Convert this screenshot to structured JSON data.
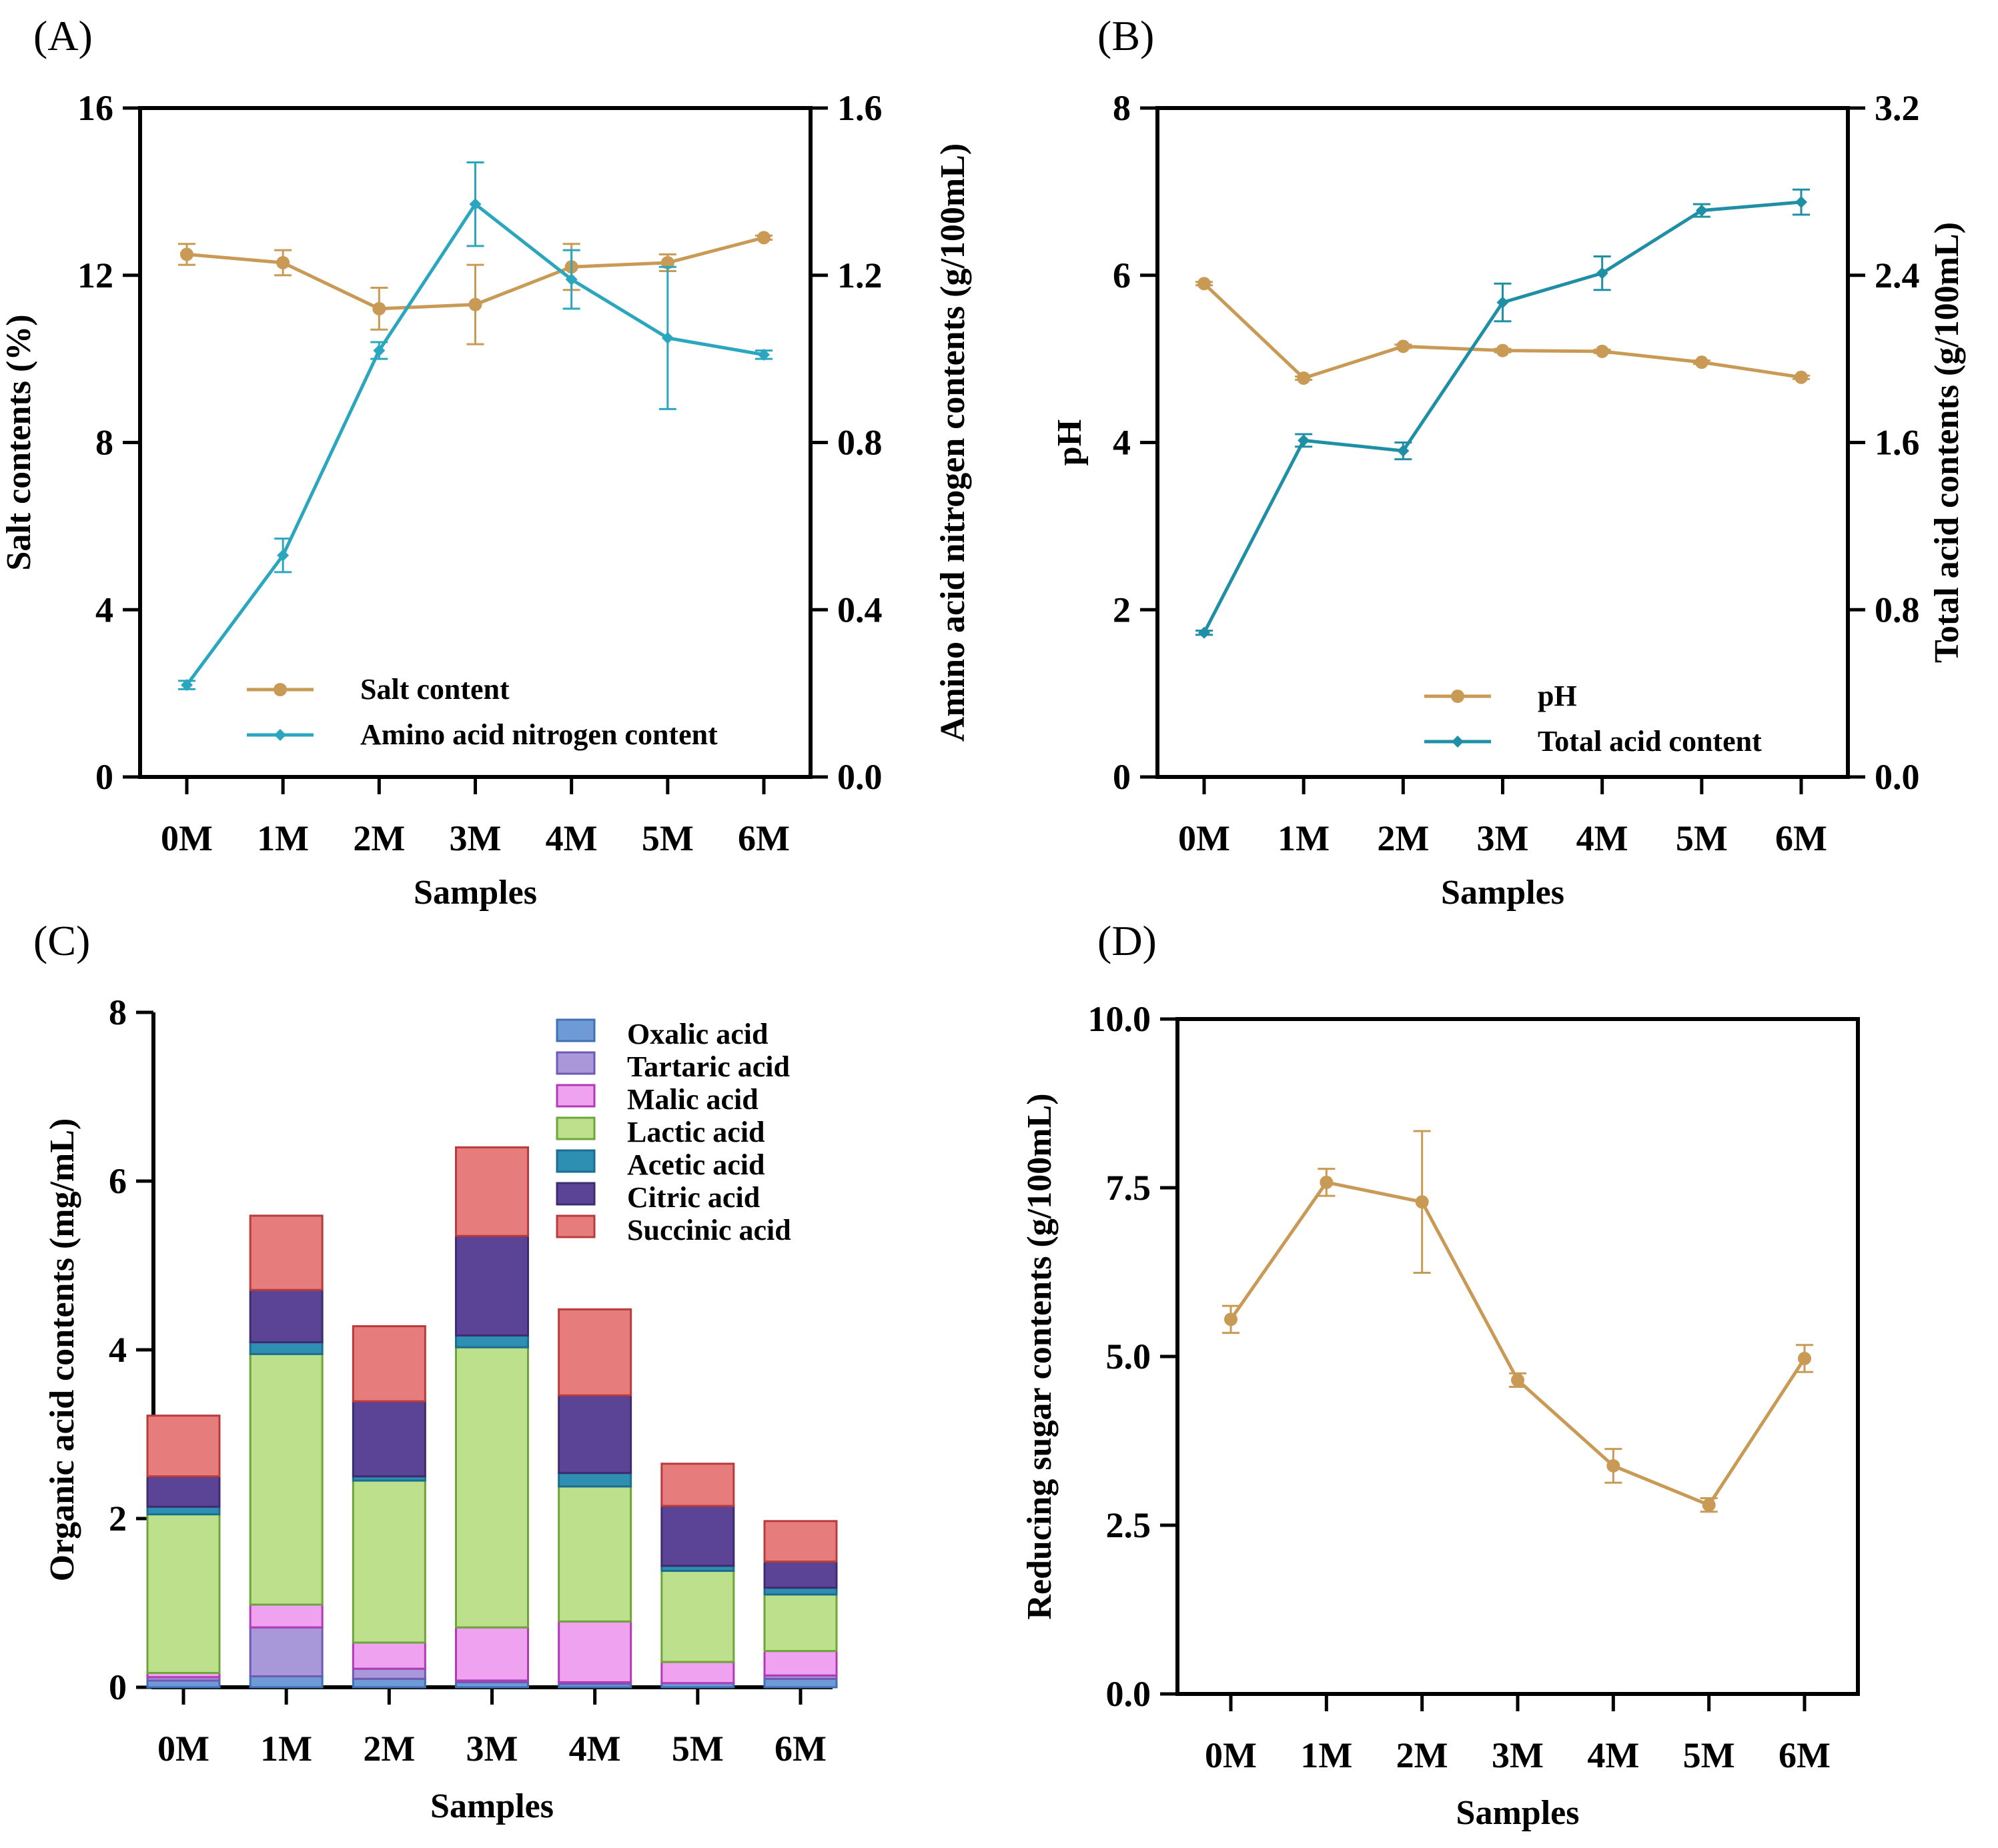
{
  "colors": {
    "salt": "#C89A55",
    "amino": "#2BA6BF",
    "ph": "#C89A55",
    "total_acid": "#1F8FA6",
    "sugar": "#C89A55",
    "axis": "#000000"
  },
  "chart_data": [
    {
      "panel": "(A)",
      "type": "line",
      "categories": [
        "0M",
        "1M",
        "2M",
        "3M",
        "4M",
        "5M",
        "6M"
      ],
      "xlabel": "Samples",
      "ylabel": "Salt contents (%)",
      "ylabel_right": "Amino acid nitrogen contents (g/100mL)",
      "ylim": [
        0,
        16
      ],
      "yticks": [
        "0",
        "4",
        "8",
        "12",
        "16"
      ],
      "ylim_right": [
        0,
        1.6
      ],
      "yticks_right": [
        "0.0",
        "0.4",
        "0.8",
        "1.2",
        "1.6"
      ],
      "legend_position": "bottom-right",
      "series": [
        {
          "name": "Salt content",
          "axis": "left",
          "values": [
            12.5,
            12.3,
            11.2,
            11.3,
            12.2,
            12.3,
            12.9
          ],
          "errors": [
            0.25,
            0.3,
            0.5,
            0.95,
            0.55,
            0.2,
            0.05
          ]
        },
        {
          "name": "Amino acid nitrogen content",
          "axis": "right",
          "values": [
            0.22,
            0.53,
            1.02,
            1.37,
            1.19,
            1.05,
            1.01
          ],
          "errors": [
            0.01,
            0.04,
            0.02,
            0.1,
            0.07,
            0.17,
            0.01
          ]
        }
      ]
    },
    {
      "panel": "(B)",
      "type": "line",
      "categories": [
        "0M",
        "1M",
        "2M",
        "3M",
        "4M",
        "5M",
        "6M"
      ],
      "xlabel": "Samples",
      "ylabel": "pH",
      "ylabel_right": "Total acid contents (g/100mL)",
      "ylim": [
        0,
        8
      ],
      "yticks": [
        "0",
        "2",
        "4",
        "6",
        "8"
      ],
      "ylim_right": [
        0,
        3.2
      ],
      "yticks_right": [
        "0.0",
        "0.8",
        "1.6",
        "2.4",
        "3.2"
      ],
      "legend_position": "bottom-right",
      "series": [
        {
          "name": "pH",
          "axis": "left",
          "values": [
            5.9,
            4.77,
            5.15,
            5.1,
            5.09,
            4.96,
            4.78
          ],
          "errors": [
            0.02,
            0.02,
            0.02,
            0.02,
            0.02,
            0.02,
            0.02
          ]
        },
        {
          "name": "Total acid content",
          "axis": "right",
          "values": [
            0.69,
            1.61,
            1.56,
            2.27,
            2.41,
            2.71,
            2.75
          ],
          "errors": [
            0.01,
            0.03,
            0.04,
            0.09,
            0.08,
            0.03,
            0.06
          ]
        }
      ]
    },
    {
      "panel": "(C)",
      "type": "bar",
      "stacked": true,
      "categories": [
        "0M",
        "1M",
        "2M",
        "3M",
        "4M",
        "5M",
        "6M"
      ],
      "xlabel": "Samples",
      "ylabel": "Organic acid contents (mg/mL)",
      "ylim": [
        0,
        8
      ],
      "yticks": [
        "0",
        "2",
        "4",
        "6",
        "8"
      ],
      "legend_position": "top-right",
      "series": [
        {
          "name": "Oxalic acid",
          "color": "#6E9BD6",
          "edge": "#3F6FB5",
          "values": [
            0.08,
            0.13,
            0.1,
            0.06,
            0.04,
            0.05,
            0.1
          ]
        },
        {
          "name": "Tartaric acid",
          "color": "#A897D9",
          "edge": "#6E5AB3",
          "values": [
            0.04,
            0.58,
            0.12,
            0.02,
            0.02,
            0.0,
            0.04
          ]
        },
        {
          "name": "Malic acid",
          "color": "#EFA2EF",
          "edge": "#B13AB5",
          "values": [
            0.05,
            0.27,
            0.31,
            0.63,
            0.72,
            0.25,
            0.29
          ]
        },
        {
          "name": "Lactic acid",
          "color": "#BDE08D",
          "edge": "#6FA43A",
          "values": [
            1.88,
            2.97,
            1.92,
            3.32,
            1.6,
            1.08,
            0.67
          ]
        },
        {
          "name": "Acetic acid",
          "color": "#2E8FB3",
          "edge": "#1B6E8F",
          "values": [
            0.09,
            0.14,
            0.05,
            0.14,
            0.16,
            0.06,
            0.08
          ]
        },
        {
          "name": "Citric acid",
          "color": "#5B4496",
          "edge": "#3D2D70",
          "values": [
            0.36,
            0.62,
            0.89,
            1.18,
            0.92,
            0.71,
            0.31
          ]
        },
        {
          "name": "Succinic acid",
          "color": "#E67C7C",
          "edge": "#B83C3C",
          "values": [
            0.72,
            0.88,
            0.89,
            1.05,
            1.02,
            0.5,
            0.48
          ]
        }
      ]
    },
    {
      "panel": "(D)",
      "type": "line",
      "categories": [
        "0M",
        "1M",
        "2M",
        "3M",
        "4M",
        "5M",
        "6M"
      ],
      "xlabel": "Samples",
      "ylabel": "Reducing sugar contents (g/100mL)",
      "ylim": [
        0,
        10
      ],
      "yticks": [
        "0.0",
        "2.5",
        "5.0",
        "7.5",
        "10.0"
      ],
      "series": [
        {
          "name": "Reducing sugar",
          "axis": "left",
          "values": [
            5.55,
            7.58,
            7.29,
            4.65,
            3.38,
            2.8,
            4.97
          ],
          "errors": [
            0.2,
            0.2,
            1.05,
            0.1,
            0.25,
            0.1,
            0.2
          ]
        }
      ]
    }
  ]
}
